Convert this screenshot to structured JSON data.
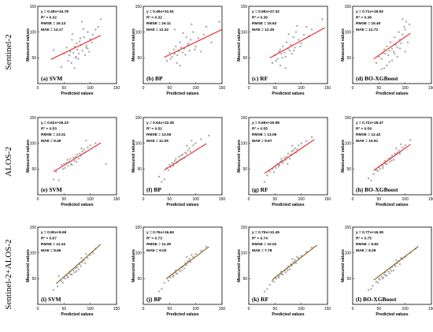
{
  "row_labels": [
    "Sentinel-2",
    "ALOS-2",
    "Sentinel-2+ALOS-2"
  ],
  "colors": {
    "fit_rows_1_2": "#e8232a",
    "fit_row_3": "#8c5a1e",
    "points": "#9a9a9a",
    "frame": "#000000"
  },
  "chart_data": [
    {
      "type": "scatter",
      "label": "(a) SVM",
      "row": 0,
      "col": 0,
      "equation": "y = 0.49x+34.78",
      "r2": "R² = 0.32",
      "rmse": "RMSE = 16.13",
      "mae": "MAE = 13.17",
      "slope": 0.49,
      "intercept": 34.78,
      "fit_x": [
        25,
        120
      ],
      "xlabel": "Predicted values",
      "ylabel": "Measured values",
      "xlim": [
        0,
        150
      ],
      "ylim": [
        0,
        150
      ],
      "xticks": [
        0,
        50,
        100,
        150
      ],
      "yticks": [
        50,
        100,
        150
      ],
      "x": [
        55,
        60,
        62,
        65,
        68,
        70,
        72,
        74,
        75,
        78,
        80,
        82,
        85,
        88,
        90,
        92,
        95,
        98,
        100,
        105,
        110,
        50,
        58,
        66,
        73,
        84,
        95,
        103,
        45,
        64,
        77,
        87,
        30,
        115,
        120,
        70,
        81,
        93
      ],
      "y": [
        70,
        55,
        62,
        85,
        60,
        72,
        50,
        78,
        66,
        58,
        82,
        75,
        64,
        90,
        55,
        70,
        100,
        62,
        86,
        95,
        105,
        58,
        44,
        96,
        52,
        120,
        68,
        80,
        32,
        40,
        48,
        106,
        65,
        110,
        125,
        30,
        88,
        74
      ]
    },
    {
      "type": "scatter",
      "label": "(b) BP",
      "row": 0,
      "col": 1,
      "equation": "y = 0.49x+31.51",
      "r2": "R² = 0.32",
      "rmse": "RMSE = 16.11",
      "mae": "MAE = 12.32",
      "slope": 0.49,
      "intercept": 31.51,
      "fit_x": [
        40,
        150
      ],
      "xlabel": "Predicted values",
      "ylabel": "Measured values",
      "xlim": [
        0,
        150
      ],
      "ylim": [
        0,
        150
      ],
      "xticks": [
        0,
        50,
        100,
        150
      ],
      "yticks": [
        50,
        100,
        150
      ],
      "x": [
        50,
        55,
        58,
        60,
        62,
        65,
        68,
        70,
        72,
        75,
        78,
        80,
        82,
        85,
        88,
        90,
        95,
        100,
        105,
        110,
        115,
        120,
        45,
        52,
        64,
        76,
        86,
        98,
        92,
        60,
        70,
        130,
        145
      ],
      "y": [
        60,
        52,
        66,
        58,
        72,
        55,
        63,
        80,
        70,
        60,
        68,
        56,
        90,
        75,
        64,
        85,
        100,
        72,
        88,
        62,
        95,
        110,
        44,
        48,
        40,
        98,
        78,
        66,
        115,
        105,
        35,
        80,
        120
      ]
    },
    {
      "type": "scatter",
      "label": "(c) RF",
      "row": 0,
      "col": 2,
      "equation": "y = 0.56x+27.32",
      "r2": "R² = 0.36",
      "rmse": "RMSE = 15.62",
      "mae": "MAE = 12.39",
      "slope": 0.56,
      "intercept": 27.32,
      "fit_x": [
        40,
        145
      ],
      "xlabel": "Predicted values",
      "ylabel": "Measured values",
      "xlim": [
        0,
        150
      ],
      "ylim": [
        0,
        150
      ],
      "xticks": [
        0,
        50,
        100,
        150
      ],
      "yticks": [
        50,
        100,
        150
      ],
      "x": [
        50,
        55,
        58,
        60,
        62,
        65,
        68,
        70,
        72,
        75,
        78,
        80,
        82,
        85,
        88,
        90,
        95,
        100,
        105,
        110,
        115,
        120,
        140,
        45,
        52,
        64,
        76,
        86,
        98,
        92,
        60,
        70
      ],
      "y": [
        55,
        48,
        62,
        66,
        58,
        72,
        60,
        52,
        80,
        68,
        64,
        75,
        58,
        90,
        70,
        100,
        85,
        78,
        95,
        110,
        92,
        105,
        125,
        40,
        44,
        50,
        96,
        64,
        72,
        112,
        35,
        30
      ]
    },
    {
      "type": "scatter",
      "label": "(d) BO-XGBoost",
      "row": 0,
      "col": 3,
      "equation": "y = 0.71x+19.52",
      "r2": "R² = 0.38",
      "rmse": "RMSE = 15.40",
      "mae": "MAE = 12.72",
      "slope": 0.71,
      "intercept": 19.52,
      "fit_x": [
        40,
        110
      ],
      "xlabel": "Predicted values",
      "ylabel": "Measured values",
      "xlim": [
        0,
        150
      ],
      "ylim": [
        0,
        150
      ],
      "xticks": [
        0,
        50,
        100,
        150
      ],
      "yticks": [
        50,
        100,
        150
      ],
      "x": [
        45,
        50,
        55,
        58,
        60,
        62,
        65,
        68,
        70,
        72,
        75,
        78,
        80,
        82,
        85,
        88,
        90,
        92,
        95,
        98,
        100,
        102,
        105,
        108,
        60,
        70,
        80,
        90,
        100,
        95,
        85,
        75,
        65,
        55
      ],
      "y": [
        40,
        52,
        48,
        60,
        66,
        58,
        72,
        55,
        64,
        80,
        68,
        62,
        90,
        75,
        70,
        100,
        85,
        78,
        95,
        110,
        105,
        120,
        80,
        115,
        30,
        42,
        58,
        68,
        62,
        125,
        52,
        45,
        35,
        28
      ]
    },
    {
      "type": "scatter",
      "label": "(e) SVM",
      "row": 1,
      "col": 0,
      "equation": "y = 0.62x+26.23",
      "r2": "R² = 0.53",
      "rmse": "RMSE = 13.31",
      "mae": "MAE = 9.49",
      "slope": 0.62,
      "intercept": 26.23,
      "fit_x": [
        30,
        120
      ],
      "xlabel": "Predicted values",
      "ylabel": "Measured values",
      "xlim": [
        0,
        150
      ],
      "ylim": [
        0,
        150
      ],
      "xticks": [
        0,
        50,
        100,
        150
      ],
      "yticks": [
        50,
        100,
        150
      ],
      "x": [
        30,
        40,
        45,
        50,
        52,
        55,
        58,
        60,
        62,
        65,
        68,
        70,
        72,
        75,
        78,
        80,
        82,
        85,
        88,
        90,
        95,
        100,
        110,
        130,
        35,
        48,
        57,
        63,
        74,
        83,
        92
      ],
      "y": [
        30,
        28,
        58,
        60,
        52,
        62,
        56,
        64,
        70,
        58,
        72,
        66,
        74,
        78,
        70,
        80,
        76,
        84,
        88,
        82,
        92,
        96,
        100,
        60,
        45,
        50,
        68,
        60,
        64,
        90,
        105
      ]
    },
    {
      "type": "scatter",
      "label": "(f) BP",
      "row": 1,
      "col": 1,
      "equation": "y = 0.64x+22.35",
      "r2": "R² = 0.52",
      "rmse": "RMSE = 13.55",
      "mae": "MAE = 11.05",
      "slope": 0.64,
      "intercept": 22.35,
      "fit_x": [
        40,
        120
      ],
      "xlabel": "Predicted values",
      "ylabel": "Measured values",
      "xlim": [
        0,
        150
      ],
      "ylim": [
        0,
        150
      ],
      "xticks": [
        0,
        50,
        100,
        150
      ],
      "yticks": [
        50,
        100,
        150
      ],
      "x": [
        30,
        40,
        45,
        50,
        52,
        55,
        58,
        60,
        62,
        65,
        68,
        70,
        72,
        75,
        78,
        80,
        82,
        85,
        88,
        90,
        95,
        100,
        110,
        125,
        48,
        57,
        63,
        74,
        83,
        92,
        35
      ],
      "y": [
        35,
        30,
        52,
        58,
        54,
        62,
        60,
        66,
        70,
        64,
        74,
        68,
        76,
        78,
        72,
        82,
        80,
        86,
        90,
        84,
        96,
        100,
        108,
        115,
        48,
        56,
        62,
        70,
        95,
        105,
        25
      ]
    },
    {
      "type": "scatter",
      "label": "(g) RF",
      "row": 1,
      "col": 2,
      "equation": "y = 0.69x+20.98",
      "r2": "R² = 0.55",
      "rmse": "RMSE = 13.06",
      "mae": "MAE = 9.67",
      "slope": 0.69,
      "intercept": 20.98,
      "fit_x": [
        30,
        125
      ],
      "xlabel": "Predicted values",
      "ylabel": "Measured values",
      "xlim": [
        0,
        150
      ],
      "ylim": [
        0,
        150
      ],
      "xticks": [
        0,
        50,
        100,
        150
      ],
      "yticks": [
        50,
        100,
        150
      ],
      "x": [
        35,
        40,
        45,
        50,
        52,
        55,
        58,
        60,
        62,
        65,
        68,
        70,
        72,
        75,
        78,
        80,
        82,
        85,
        88,
        90,
        95,
        100,
        110,
        120,
        48,
        57,
        63,
        74,
        83,
        92,
        30
      ],
      "y": [
        38,
        45,
        50,
        56,
        52,
        60,
        58,
        64,
        70,
        62,
        72,
        68,
        74,
        80,
        70,
        78,
        84,
        86,
        90,
        82,
        96,
        100,
        104,
        112,
        44,
        55,
        66,
        60,
        95,
        88,
        25
      ]
    },
    {
      "type": "scatter",
      "label": "(h) BO-XGBoost",
      "row": 1,
      "col": 3,
      "equation": "y = 0.72x+18.47",
      "r2": "R² = 0.59",
      "rmse": "RMSE = 12.42",
      "mae": "MAE = 10.91",
      "slope": 0.72,
      "intercept": 18.47,
      "fit_x": [
        40,
        110
      ],
      "xlabel": "Predicted values",
      "ylabel": "Measured values",
      "xlim": [
        0,
        150
      ],
      "ylim": [
        0,
        150
      ],
      "xticks": [
        0,
        50,
        100,
        150
      ],
      "yticks": [
        50,
        100,
        150
      ],
      "x": [
        30,
        40,
        45,
        50,
        52,
        55,
        58,
        60,
        62,
        65,
        68,
        70,
        72,
        75,
        78,
        80,
        82,
        85,
        88,
        90,
        95,
        100,
        110,
        48,
        57,
        63,
        74,
        83,
        92,
        35
      ],
      "y": [
        32,
        40,
        48,
        54,
        50,
        58,
        56,
        62,
        66,
        60,
        70,
        64,
        72,
        76,
        68,
        80,
        78,
        82,
        86,
        80,
        92,
        96,
        106,
        46,
        52,
        60,
        66,
        90,
        98,
        28
      ]
    },
    {
      "type": "scatter",
      "label": "(i) SVM",
      "row": 2,
      "col": 0,
      "equation": "y = 0.90x+8.69",
      "r2": "R² = 0.67",
      "rmse": "RMSE = 11.34",
      "mae": "MAE = 8.66",
      "slope": 0.9,
      "intercept": 8.69,
      "fit_x": [
        35,
        120
      ],
      "xlabel": "Predicted values",
      "ylabel": "Measured values",
      "xlim": [
        0,
        150
      ],
      "ylim": [
        0,
        150
      ],
      "xticks": [
        0,
        50,
        100,
        150
      ],
      "yticks": [
        50,
        100,
        150
      ],
      "x": [
        30,
        38,
        45,
        50,
        52,
        55,
        58,
        60,
        62,
        65,
        68,
        70,
        72,
        75,
        78,
        80,
        82,
        85,
        88,
        90,
        95,
        100,
        105,
        110,
        48,
        57,
        63,
        74,
        83,
        92,
        40
      ],
      "y": [
        28,
        35,
        45,
        52,
        50,
        56,
        54,
        60,
        64,
        58,
        66,
        62,
        70,
        72,
        68,
        78,
        74,
        82,
        86,
        80,
        90,
        96,
        100,
        108,
        42,
        52,
        58,
        64,
        90,
        98,
        55
      ]
    },
    {
      "type": "scatter",
      "label": "(j) BP",
      "row": 2,
      "col": 1,
      "equation": "y = 0.76x+16.84",
      "r2": "R² = 0.73",
      "rmse": "RMSE = 11.39",
      "mae": "MAE = 9.03",
      "slope": 0.76,
      "intercept": 16.84,
      "fit_x": [
        45,
        125
      ],
      "xlabel": "Predicted values",
      "ylabel": "Measured values",
      "xlim": [
        0,
        150
      ],
      "ylim": [
        0,
        150
      ],
      "xticks": [
        0,
        50,
        100,
        150
      ],
      "yticks": [
        50,
        100,
        150
      ],
      "x": [
        35,
        40,
        45,
        50,
        52,
        55,
        58,
        60,
        62,
        65,
        68,
        70,
        72,
        75,
        78,
        80,
        82,
        85,
        88,
        90,
        95,
        100,
        110,
        120,
        48,
        57,
        63,
        74,
        83,
        92,
        30
      ],
      "y": [
        30,
        42,
        50,
        54,
        52,
        58,
        56,
        62,
        66,
        60,
        68,
        64,
        72,
        74,
        70,
        80,
        76,
        84,
        88,
        82,
        92,
        98,
        104,
        112,
        46,
        54,
        60,
        66,
        92,
        96,
        25
      ]
    },
    {
      "type": "scatter",
      "label": "(k) RF",
      "row": 2,
      "col": 2,
      "equation": "y = 0.79x+12.45",
      "r2": "R² = 0.74",
      "rmse": "RMSE = 10.02",
      "mae": "MAE = 7.78",
      "slope": 0.79,
      "intercept": 12.45,
      "fit_x": [
        45,
        130
      ],
      "xlabel": "Predicted values",
      "ylabel": "Measured values",
      "xlim": [
        0,
        150
      ],
      "ylim": [
        0,
        150
      ],
      "xticks": [
        0,
        50,
        100,
        150
      ],
      "yticks": [
        50,
        100,
        150
      ],
      "x": [
        35,
        40,
        45,
        50,
        52,
        55,
        58,
        60,
        62,
        65,
        68,
        70,
        72,
        75,
        78,
        80,
        82,
        85,
        88,
        90,
        95,
        100,
        110,
        120,
        48,
        57,
        63,
        74,
        83,
        92,
        30
      ],
      "y": [
        30,
        38,
        46,
        52,
        50,
        56,
        54,
        60,
        64,
        58,
        66,
        62,
        70,
        74,
        68,
        78,
        76,
        82,
        86,
        80,
        90,
        94,
        102,
        110,
        44,
        52,
        58,
        66,
        88,
        92,
        25
      ]
    },
    {
      "type": "scatter",
      "label": "(l) BO-XGBoost",
      "row": 2,
      "col": 3,
      "equation": "y = 0.77x+16.39",
      "r2": "R² = 0.75",
      "rmse": "RMSE = 9.82",
      "mae": "MAE = 8.29",
      "slope": 0.77,
      "intercept": 16.39,
      "fit_x": [
        40,
        125
      ],
      "xlabel": "Predicted values",
      "ylabel": "Measured values",
      "xlim": [
        0,
        150
      ],
      "ylim": [
        0,
        150
      ],
      "xticks": [
        0,
        50,
        100,
        150
      ],
      "yticks": [
        50,
        100,
        150
      ],
      "x": [
        30,
        38,
        45,
        50,
        52,
        55,
        58,
        60,
        62,
        65,
        68,
        70,
        72,
        75,
        78,
        80,
        82,
        85,
        88,
        90,
        95,
        100,
        110,
        120,
        48,
        57,
        63,
        74,
        83,
        92,
        35
      ],
      "y": [
        28,
        36,
        44,
        50,
        48,
        54,
        52,
        58,
        62,
        56,
        64,
        60,
        68,
        72,
        66,
        76,
        74,
        80,
        84,
        78,
        88,
        92,
        100,
        108,
        42,
        50,
        56,
        64,
        86,
        90,
        30
      ]
    }
  ]
}
